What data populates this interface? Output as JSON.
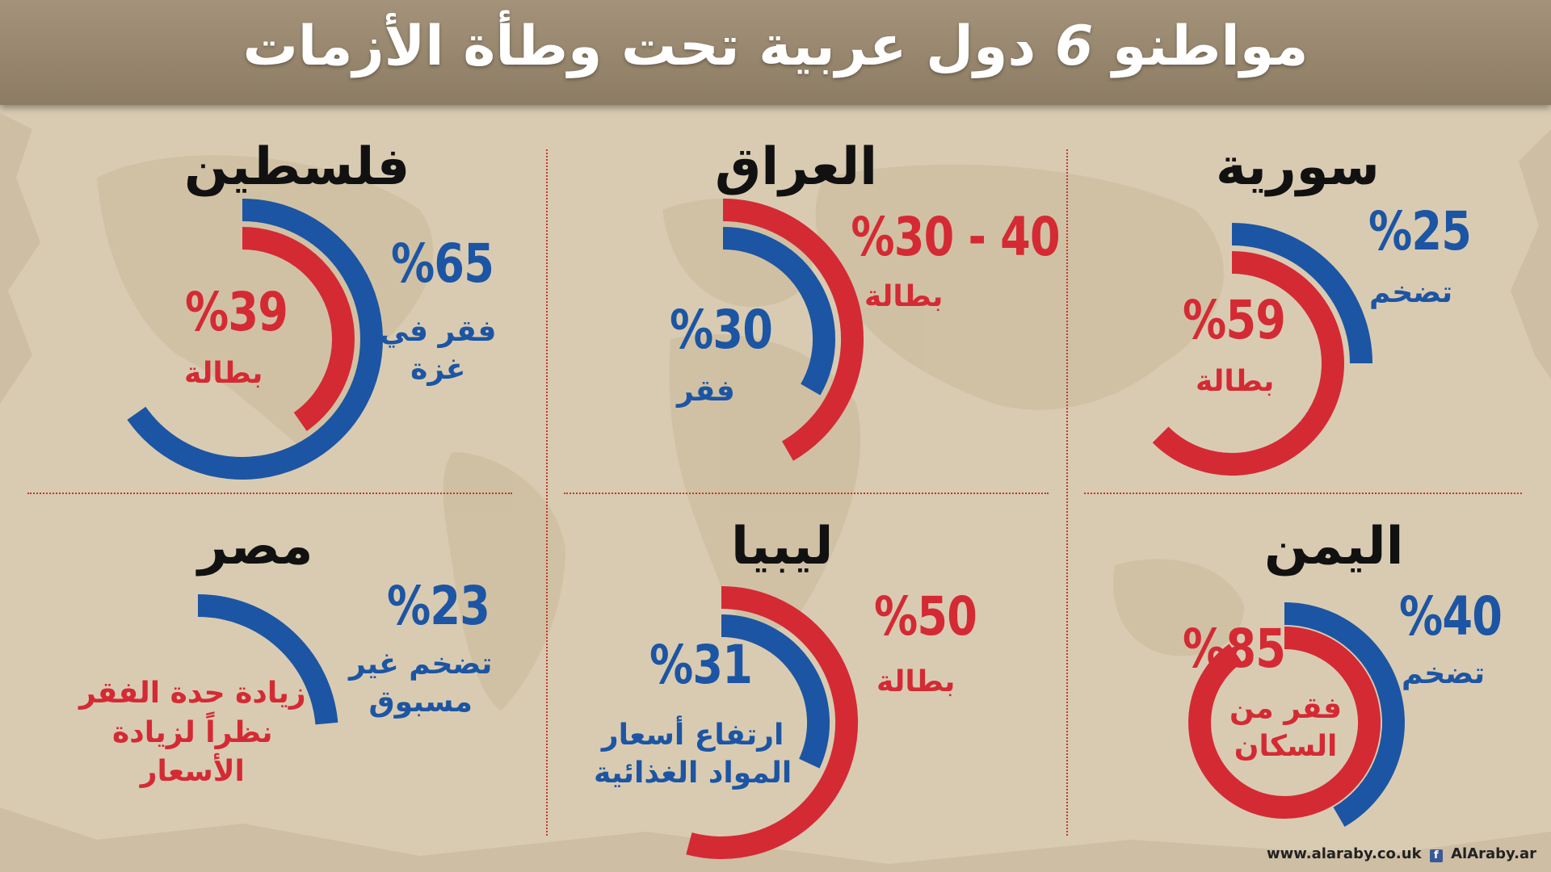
{
  "title": {
    "before": "مواطنو ",
    "num": "6",
    "after": " دول عربية تحت وطأة الأزمات"
  },
  "colors": {
    "blue": "#1c55a3",
    "red": "#d42a34",
    "paper": "#d9cbb2",
    "header": "#978770"
  },
  "chart_data": [
    {
      "type": "donut",
      "country": "سورية",
      "series": [
        {
          "value_text": "%25",
          "value": 25,
          "label": "تضخم",
          "color": "blue"
        },
        {
          "value_text": "%59",
          "value": 59,
          "label": "بطالة",
          "color": "red"
        }
      ]
    },
    {
      "type": "donut",
      "country": "العراق",
      "series": [
        {
          "value_text": "%30 - 40",
          "value": [
            30,
            40
          ],
          "label": "بطالة",
          "color": "red"
        },
        {
          "value_text": "%30",
          "value": 30,
          "label": "فقر",
          "color": "blue"
        }
      ]
    },
    {
      "type": "donut",
      "country": "فلسطين",
      "series": [
        {
          "value_text": "%65",
          "value": 65,
          "label": "فقر في\nغزة",
          "color": "blue"
        },
        {
          "value_text": "%39",
          "value": 39,
          "label": "بطالة",
          "color": "red"
        }
      ]
    },
    {
      "type": "donut",
      "country": "اليمن",
      "series": [
        {
          "value_text": "%40",
          "value": 40,
          "label": "تضخم",
          "color": "blue"
        },
        {
          "value_text": "%85",
          "value": 85,
          "label": "فقر من\nالسكان",
          "color": "red"
        }
      ]
    },
    {
      "type": "donut",
      "country": "ليبيا",
      "series": [
        {
          "value_text": "%50",
          "value": 50,
          "label": "بطالة",
          "color": "red"
        },
        {
          "value_text": "%31",
          "value": 31,
          "label": "ارتفاع أسعار\nالمواد الغذائية",
          "color": "blue"
        }
      ]
    },
    {
      "type": "donut",
      "country": "مصر",
      "series": [
        {
          "value_text": "%23",
          "value": 23,
          "label": "تضخم غير\nمسبوق",
          "color": "blue"
        }
      ],
      "note": "زيادة حدة الفقر\nنظراً لزيادة\nالأسعار"
    }
  ],
  "footer": {
    "site": "www.alaraby.co.uk",
    "fb_icon": "f",
    "handle": "AlAraby.ar"
  }
}
